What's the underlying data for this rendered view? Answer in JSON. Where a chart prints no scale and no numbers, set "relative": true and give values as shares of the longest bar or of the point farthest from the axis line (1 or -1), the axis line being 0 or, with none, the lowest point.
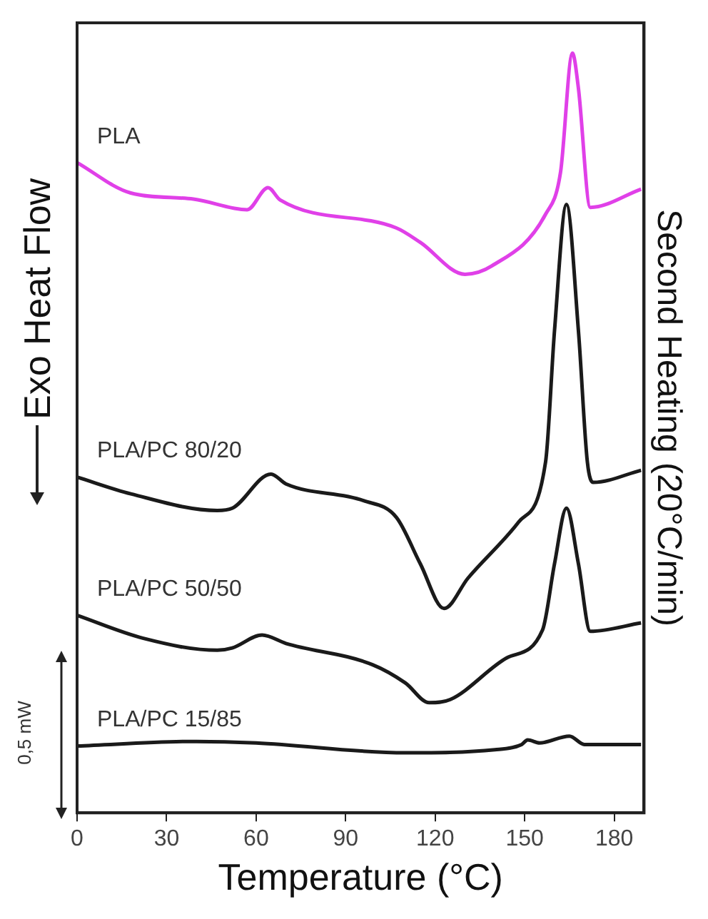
{
  "chart_data": {
    "type": "line",
    "relative": true,
    "xlabel": "Temperature (°C)",
    "ylabel": "Exo Heat Flow",
    "y2label": "Second Heating (20°C/min)",
    "xlim": [
      0,
      190
    ],
    "xticks": [
      0,
      30,
      60,
      90,
      120,
      150,
      180
    ],
    "grid": false,
    "legend": false,
    "marker": "none",
    "line_style": "solid",
    "annotations": [
      "0,5 mW"
    ],
    "series": [
      {
        "name": "PLA",
        "color": "#e040e8",
        "x": [
          0,
          18,
          39,
          57,
          64,
          68,
          107,
          115,
          130,
          139,
          157,
          162,
          166,
          168,
          172,
          189
        ],
        "values": [
          0.856,
          0.816,
          0.808,
          0.794,
          0.823,
          0.807,
          0.77,
          0.751,
          0.709,
          0.72,
          0.788,
          0.843,
          1.0,
          0.954,
          0.797,
          0.821
        ]
      },
      {
        "name": "PLA/PC 80/20",
        "color": "#1a1a1a",
        "x": [
          0,
          18,
          47,
          52,
          65,
          70,
          96,
          107,
          115,
          123,
          131,
          148,
          157,
          160,
          164,
          168,
          171,
          173,
          189
        ],
        "values": [
          0.442,
          0.42,
          0.398,
          0.401,
          0.446,
          0.433,
          0.411,
          0.389,
          0.328,
          0.269,
          0.309,
          0.383,
          0.462,
          0.635,
          0.801,
          0.635,
          0.462,
          0.435,
          0.451
        ]
      },
      {
        "name": "PLA/PC 50/50",
        "color": "#1a1a1a",
        "x": [
          0,
          22,
          47,
          52,
          62,
          70,
          99,
          110,
          118,
          125,
          144,
          156,
          160,
          164,
          168,
          172,
          189
        ],
        "values": [
          0.26,
          0.23,
          0.214,
          0.217,
          0.234,
          0.223,
          0.195,
          0.171,
          0.145,
          0.149,
          0.204,
          0.241,
          0.328,
          0.401,
          0.328,
          0.239,
          0.25
        ]
      },
      {
        "name": "PLA/PC 15/85",
        "color": "#1a1a1a",
        "x": [
          0,
          40,
          60,
          110,
          140,
          149,
          151,
          155,
          165,
          170,
          189
        ],
        "values": [
          0.088,
          0.094,
          0.092,
          0.079,
          0.083,
          0.09,
          0.096,
          0.092,
          0.101,
          0.09,
          0.09
        ]
      }
    ]
  }
}
